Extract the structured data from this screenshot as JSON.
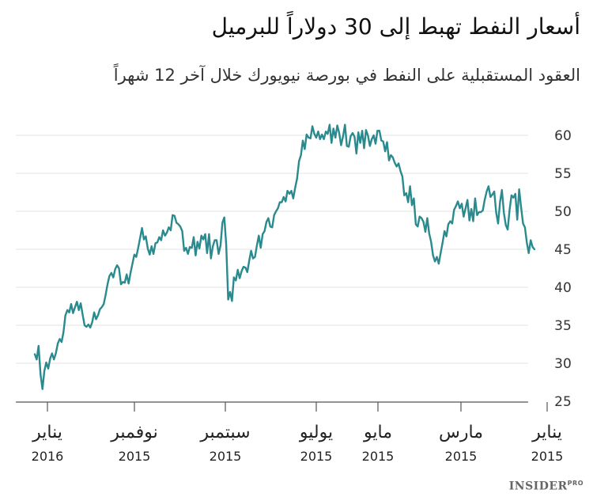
{
  "brand": {
    "name": "INSIDER",
    "suffix": "PRO"
  },
  "chart_data": {
    "type": "line",
    "title": "أسعار النفط تهبط إلى 30 دولاراً للبرميل",
    "subtitle": "العقود المستقبلية على النفط في بورصة نيويورك خلال آخر 12 شهراً",
    "xlabel": "",
    "ylabel": "",
    "ylim": [
      25,
      62
    ],
    "yticks": [
      25,
      30,
      35,
      40,
      45,
      50,
      55,
      60
    ],
    "grid": true,
    "x_ticks": [
      {
        "month": "يناير",
        "year": "2016"
      },
      {
        "month": "نوفمبر",
        "year": "2015"
      },
      {
        "month": "سبتمبر",
        "year": "2015"
      },
      {
        "month": "يوليو",
        "year": "2015"
      },
      {
        "month": "مايو",
        "year": "2015"
      },
      {
        "month": "مارس",
        "year": "2015"
      },
      {
        "month": "يناير",
        "year": "2015"
      }
    ],
    "x_direction": "right-to-left",
    "color": "#2a8a8e",
    "series": [
      {
        "values": [
          31.2,
          30.5,
          32.3,
          28.5,
          26.6,
          29.0,
          30.1,
          29.3,
          30.6,
          31.3,
          30.5,
          31.3,
          32.6,
          33.2,
          32.8,
          34.1,
          36.3,
          37.0,
          36.7,
          37.8,
          36.6,
          37.4,
          38.1,
          37.0,
          37.9,
          36.4,
          35.0,
          34.8,
          35.1,
          34.7,
          35.4,
          36.7,
          35.8,
          36.3,
          37.1,
          37.4,
          37.8,
          39.0,
          40.4,
          41.5,
          41.9,
          41.3,
          42.4,
          42.9,
          42.5,
          40.4,
          40.7,
          40.6,
          41.7,
          40.5,
          41.9,
          43.1,
          44.3,
          44.0,
          45.2,
          46.5,
          47.8,
          46.3,
          46.7,
          45.1,
          44.3,
          45.4,
          44.4,
          45.8,
          45.9,
          46.6,
          46.2,
          47.5,
          46.8,
          47.2,
          47.9,
          47.5,
          49.5,
          49.4,
          48.5,
          48.3,
          48.0,
          47.4,
          44.8,
          45.2,
          44.4,
          45.3,
          45.2,
          46.6,
          44.2,
          46.0,
          45.1,
          46.8,
          46.3,
          47.0,
          44.5,
          47.0,
          43.8,
          45.4,
          46.2,
          46.2,
          44.4,
          45.5,
          48.5,
          49.2,
          45.6,
          38.4,
          39.4,
          38.2,
          41.3,
          40.9,
          42.3,
          41.2,
          42.1,
          42.7,
          42.6,
          42.0,
          43.5,
          44.8,
          43.8,
          44.0,
          45.5,
          46.8,
          45.2,
          47.0,
          47.4,
          48.6,
          49.1,
          48.0,
          47.9,
          49.5,
          50.0,
          50.4,
          51.2,
          51.2,
          51.9,
          51.3,
          52.7,
          52.3,
          52.7,
          51.7,
          53.1,
          54.3,
          56.6,
          57.4,
          59.3,
          58.2,
          60.1,
          59.7,
          59.6,
          61.2,
          60.2,
          59.7,
          60.5,
          59.5,
          60.1,
          59.5,
          60.5,
          60.2,
          61.4,
          59.0,
          60.9,
          59.7,
          61.3,
          60.3,
          58.7,
          59.9,
          61.4,
          58.6,
          58.5,
          59.9,
          60.3,
          59.8,
          57.6,
          60.4,
          59.0,
          60.6,
          58.3,
          60.7,
          60.0,
          58.6,
          59.5,
          60.0,
          58.9,
          60.6,
          60.6,
          59.3,
          59.2,
          57.9,
          59.1,
          56.7,
          57.4,
          57.1,
          56.4,
          55.9,
          56.3,
          55.3,
          54.6,
          52.1,
          52.4,
          51.2,
          53.3,
          50.8,
          51.7,
          48.3,
          48.0,
          49.3,
          49.1,
          48.6,
          47.3,
          49.1,
          47.1,
          46.0,
          44.2,
          43.4,
          44.0,
          43.1,
          44.5,
          45.9,
          47.4,
          46.7,
          48.3,
          48.7,
          48.4,
          50.2,
          50.7,
          51.3,
          50.4,
          51.0,
          49.3,
          50.4,
          51.5,
          48.8,
          50.3,
          48.7,
          51.7,
          49.5,
          49.9,
          49.9,
          50.1,
          51.5,
          52.6,
          53.3,
          51.9,
          52.2,
          52.6,
          49.8,
          48.4,
          51.2,
          52.8,
          49.8,
          48.2,
          47.6,
          50.2,
          52.1,
          51.8,
          52.3,
          48.9,
          52.9,
          50.6,
          48.4,
          47.9,
          45.9,
          44.5,
          46.2,
          45.3,
          45.0
        ]
      }
    ]
  }
}
